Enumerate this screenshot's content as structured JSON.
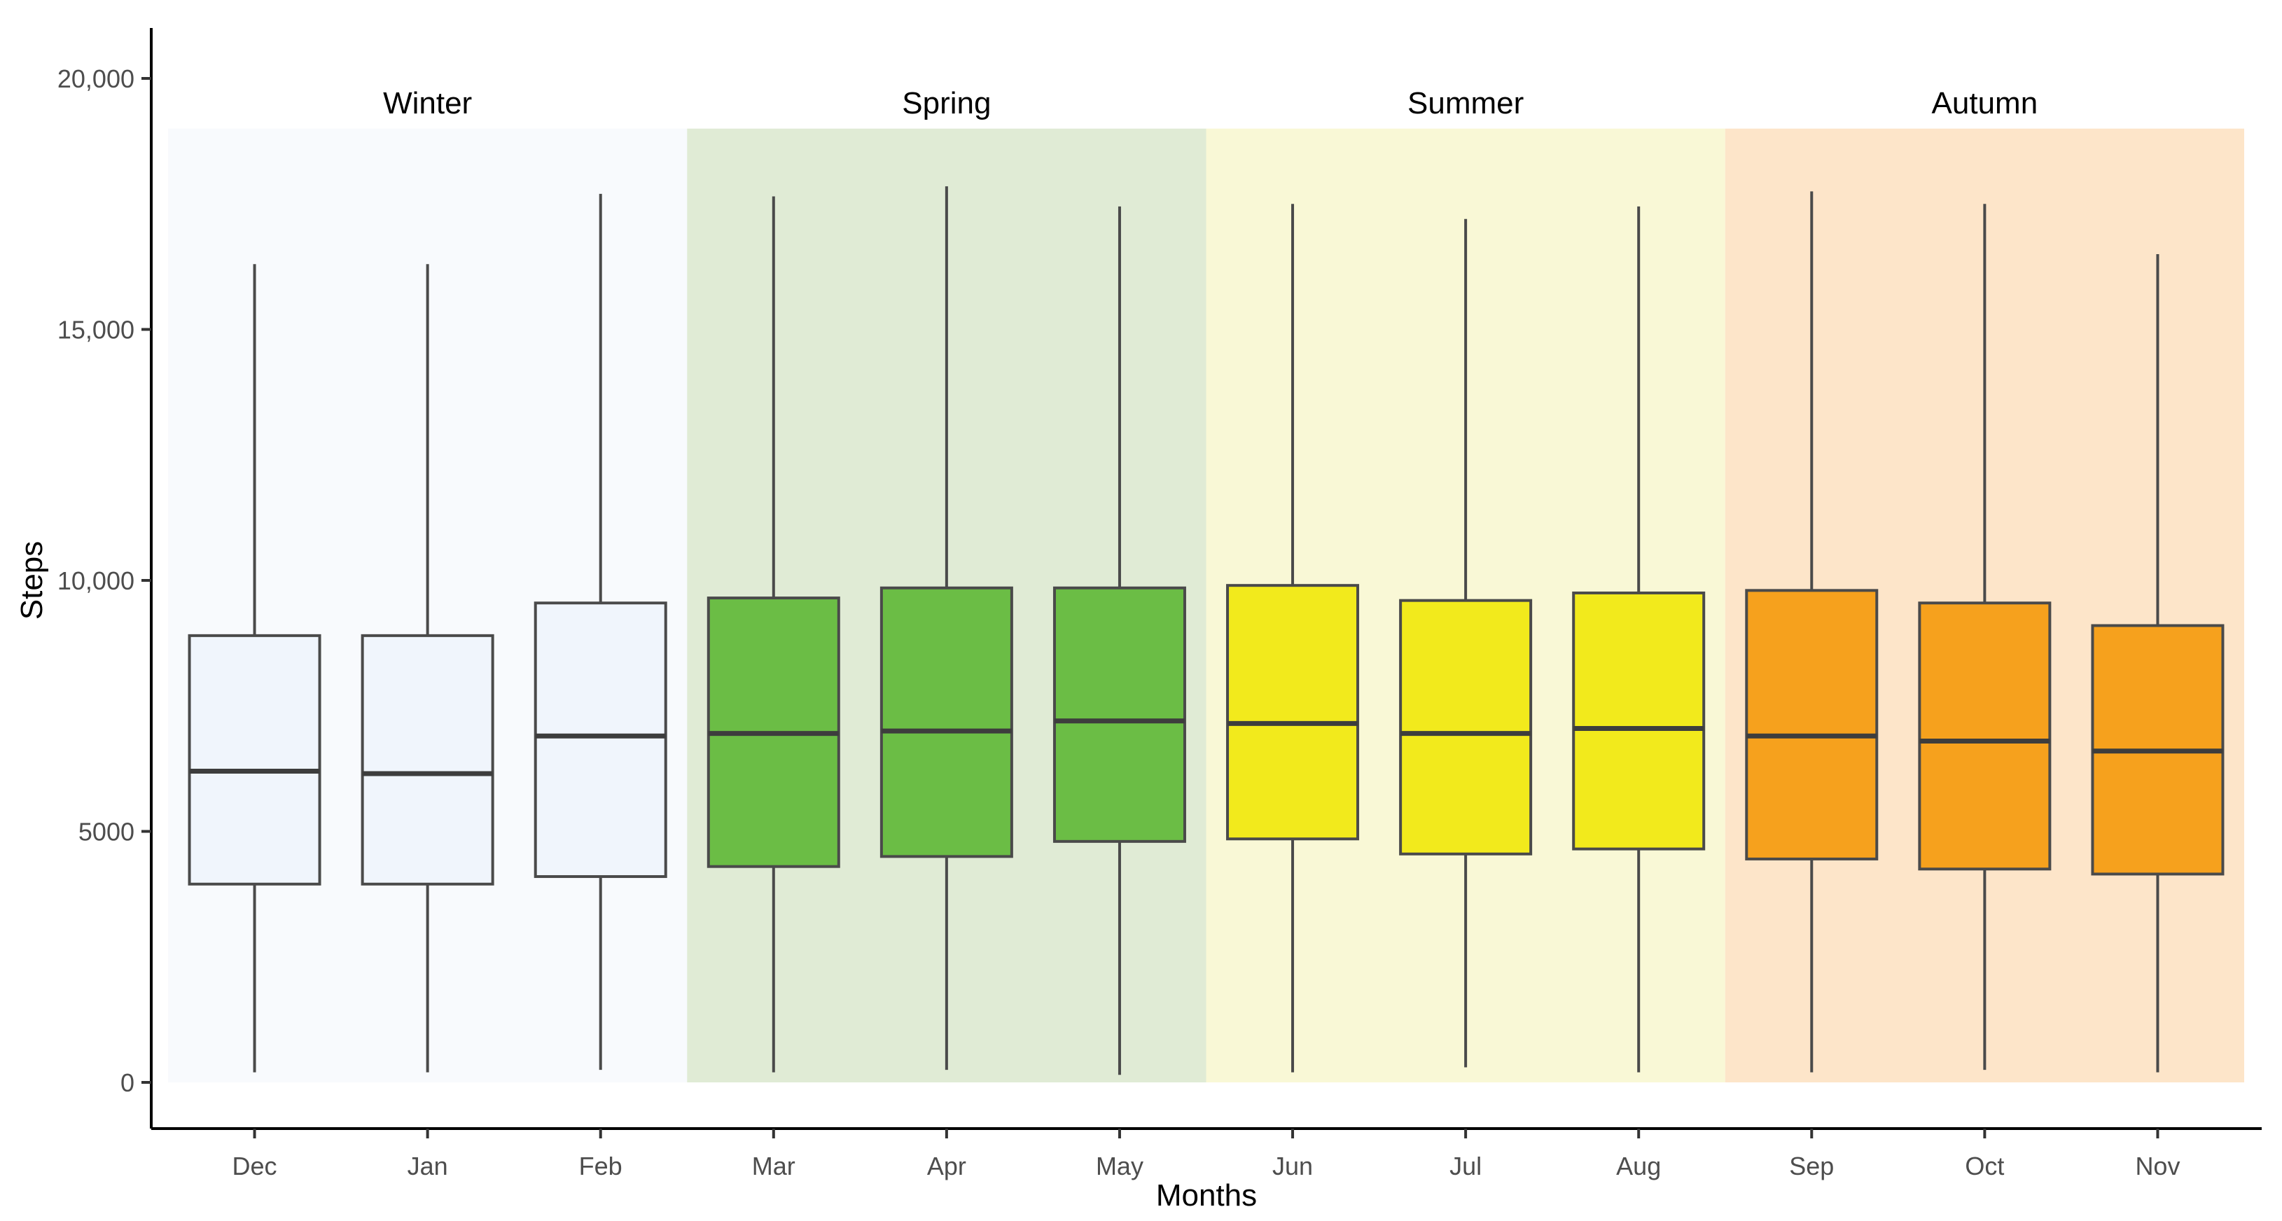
{
  "chart_data": {
    "type": "box",
    "xlabel": "Months",
    "ylabel": "Steps",
    "ylim": [
      0,
      20000
    ],
    "yticks": [
      0,
      5000,
      10000,
      15000,
      20000
    ],
    "ytick_labels": [
      "0",
      "5000",
      "10,000",
      "15,000",
      "20,000"
    ],
    "categories": [
      "Dec",
      "Jan",
      "Feb",
      "Mar",
      "Apr",
      "May",
      "Jun",
      "Jul",
      "Aug",
      "Sep",
      "Oct",
      "Nov"
    ],
    "seasons": [
      {
        "name": "Winter",
        "months": [
          "Dec",
          "Jan",
          "Feb"
        ],
        "band_color": "#f8fafd",
        "box_color": "#f0f5fc"
      },
      {
        "name": "Spring",
        "months": [
          "Mar",
          "Apr",
          "May"
        ],
        "band_color": "#e0ebd5",
        "box_color": "#6bbd45"
      },
      {
        "name": "Summer",
        "months": [
          "Jun",
          "Jul",
          "Aug"
        ],
        "band_color": "#f9f8d6",
        "box_color": "#f2ea1c"
      },
      {
        "name": "Autumn",
        "months": [
          "Sep",
          "Oct",
          "Nov"
        ],
        "band_color": "#fde5c9",
        "box_color": "#f6a11d"
      }
    ],
    "band_top": 19000,
    "boxes": [
      {
        "month": "Dec",
        "min": 200,
        "q1": 3950,
        "median": 6200,
        "q3": 8900,
        "max": 16300
      },
      {
        "month": "Jan",
        "min": 200,
        "q1": 3950,
        "median": 6150,
        "q3": 8900,
        "max": 16300
      },
      {
        "month": "Feb",
        "min": 250,
        "q1": 4100,
        "median": 6900,
        "q3": 9550,
        "max": 17700
      },
      {
        "month": "Mar",
        "min": 200,
        "q1": 4300,
        "median": 6950,
        "q3": 9650,
        "max": 17650
      },
      {
        "month": "Apr",
        "min": 250,
        "q1": 4500,
        "median": 7000,
        "q3": 9850,
        "max": 17850
      },
      {
        "month": "May",
        "min": 150,
        "q1": 4800,
        "median": 7200,
        "q3": 9850,
        "max": 17450
      },
      {
        "month": "Jun",
        "min": 200,
        "q1": 4850,
        "median": 7150,
        "q3": 9900,
        "max": 17500
      },
      {
        "month": "Jul",
        "min": 300,
        "q1": 4550,
        "median": 6950,
        "q3": 9600,
        "max": 17200
      },
      {
        "month": "Aug",
        "min": 200,
        "q1": 4650,
        "median": 7050,
        "q3": 9750,
        "max": 17450
      },
      {
        "month": "Sep",
        "min": 200,
        "q1": 4450,
        "median": 6900,
        "q3": 9800,
        "max": 17750
      },
      {
        "month": "Oct",
        "min": 250,
        "q1": 4250,
        "median": 6800,
        "q3": 9550,
        "max": 17500
      },
      {
        "month": "Nov",
        "min": 200,
        "q1": 4150,
        "median": 6600,
        "q3": 9100,
        "max": 16500
      }
    ],
    "grid": false,
    "legend": "none"
  }
}
